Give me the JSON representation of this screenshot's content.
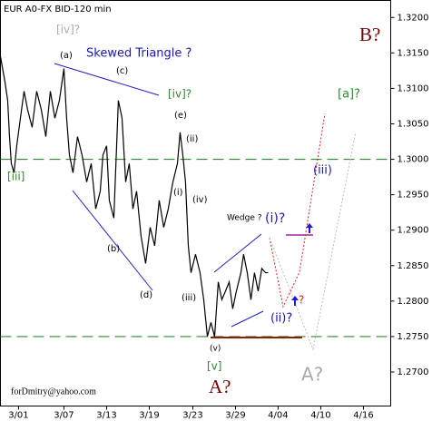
{
  "chart_data": {
    "type": "line",
    "title": "EUR A0-FX BID-120 min",
    "watermark": "forDmitry@yahoo.com",
    "color": "#000000",
    "x": [
      -1.68,
      -1.26,
      -1.01,
      -0.84,
      -0.67,
      -0.42,
      -0.17,
      0.17,
      0.51,
      0.84,
      1.26,
      1.68,
      2.11,
      2.53,
      2.95,
      3.37,
      3.79,
      4.21,
      4.46,
      4.72,
      5.05,
      5.47,
      5.89,
      6.32,
      6.74,
      7.16,
      7.58,
      7.83,
      8.17,
      8.42,
      8.84,
      9.26,
      9.6,
      9.94,
      10.27,
      10.61,
      10.95,
      11.37,
      11.79,
      12.21,
      12.63,
      13.05,
      13.47,
      13.89,
      14.32,
      14.74,
      14.99,
      15.24,
      15.49,
      15.75,
      16,
      16.42,
      16.84,
      17.18,
      17.52,
      17.85,
      18.19,
      18.53,
      18.86,
      19.2,
      19.54,
      19.87,
      20.21,
      20.63,
      20.88,
      21.22,
      21.56,
      21.89,
      22.23,
      22.57,
      22.91,
      23.16
    ],
    "values": [
      1.3145,
      1.3109,
      1.3083,
      1.3032,
      1.2994,
      1.2981,
      1.3019,
      1.3058,
      1.3096,
      1.307,
      1.3045,
      1.3096,
      1.307,
      1.3032,
      1.3096,
      1.3058,
      1.3083,
      1.3128,
      1.3058,
      1.3006,
      1.2981,
      1.3032,
      1.3006,
      1.2968,
      1.2994,
      1.293,
      1.2955,
      1.3006,
      1.3019,
      1.2942,
      1.2917,
      1.3083,
      1.3058,
      1.2968,
      1.2994,
      1.293,
      1.2955,
      1.2891,
      1.2853,
      1.2904,
      1.2878,
      1.2942,
      1.2904,
      1.293,
      1.2968,
      1.2994,
      1.3038,
      1.3006,
      1.2968,
      1.2878,
      1.284,
      1.2866,
      1.284,
      1.2802,
      1.275,
      1.277,
      1.275,
      1.2827,
      1.2802,
      1.2814,
      1.2827,
      1.2789,
      1.2814,
      1.284,
      1.2866,
      1.284,
      1.2802,
      1.284,
      1.2814,
      1.2846,
      1.284,
      1.284
    ],
    "xlim": [
      -1.68,
      34.53
    ],
    "xticks": [
      {
        "value": 0,
        "label": "3/01"
      },
      {
        "value": 4.21,
        "label": "3/07"
      },
      {
        "value": 8.17,
        "label": "3/13"
      },
      {
        "value": 12.13,
        "label": "3/19"
      },
      {
        "value": 16.17,
        "label": "3/23"
      },
      {
        "value": 20.13,
        "label": "3/29"
      },
      {
        "value": 24.08,
        "label": "4/04"
      },
      {
        "value": 28.04,
        "label": "4/10"
      },
      {
        "value": 32.0,
        "label": "4/16"
      }
    ],
    "ylim": [
      1.2652,
      1.3224
    ],
    "yticks": [
      {
        "value": 1.27,
        "label": "1.2700"
      },
      {
        "value": 1.275,
        "label": "1.2750"
      },
      {
        "value": 1.28,
        "label": "1.2800"
      },
      {
        "value": 1.285,
        "label": "1.2850"
      },
      {
        "value": 1.29,
        "label": "1.2900"
      },
      {
        "value": 1.295,
        "label": "1.2950"
      },
      {
        "value": 1.3,
        "label": "1.3000"
      },
      {
        "value": 1.305,
        "label": "1.3050"
      },
      {
        "value": 1.31,
        "label": "1.3100"
      },
      {
        "value": 1.315,
        "label": "1.3150"
      },
      {
        "value": 1.32,
        "label": "1.3200"
      }
    ],
    "levels": [
      1.3,
      1.275
    ],
    "level_color": "#2e8b2e",
    "annotations": [
      "[iv]?",
      "(a)",
      "Skewed Triangle ?",
      "(c)",
      "[iv]?",
      "(e)",
      "(ii)",
      "[iii]",
      "(i)",
      "(iv)",
      "Wedge ?",
      "(i)?",
      "(b)",
      "(d)",
      "(iii)",
      "(ii)?",
      "(iii)",
      "[a]?",
      "B?",
      "A?",
      "A?",
      "(v)",
      "[v]",
      "?"
    ]
  }
}
